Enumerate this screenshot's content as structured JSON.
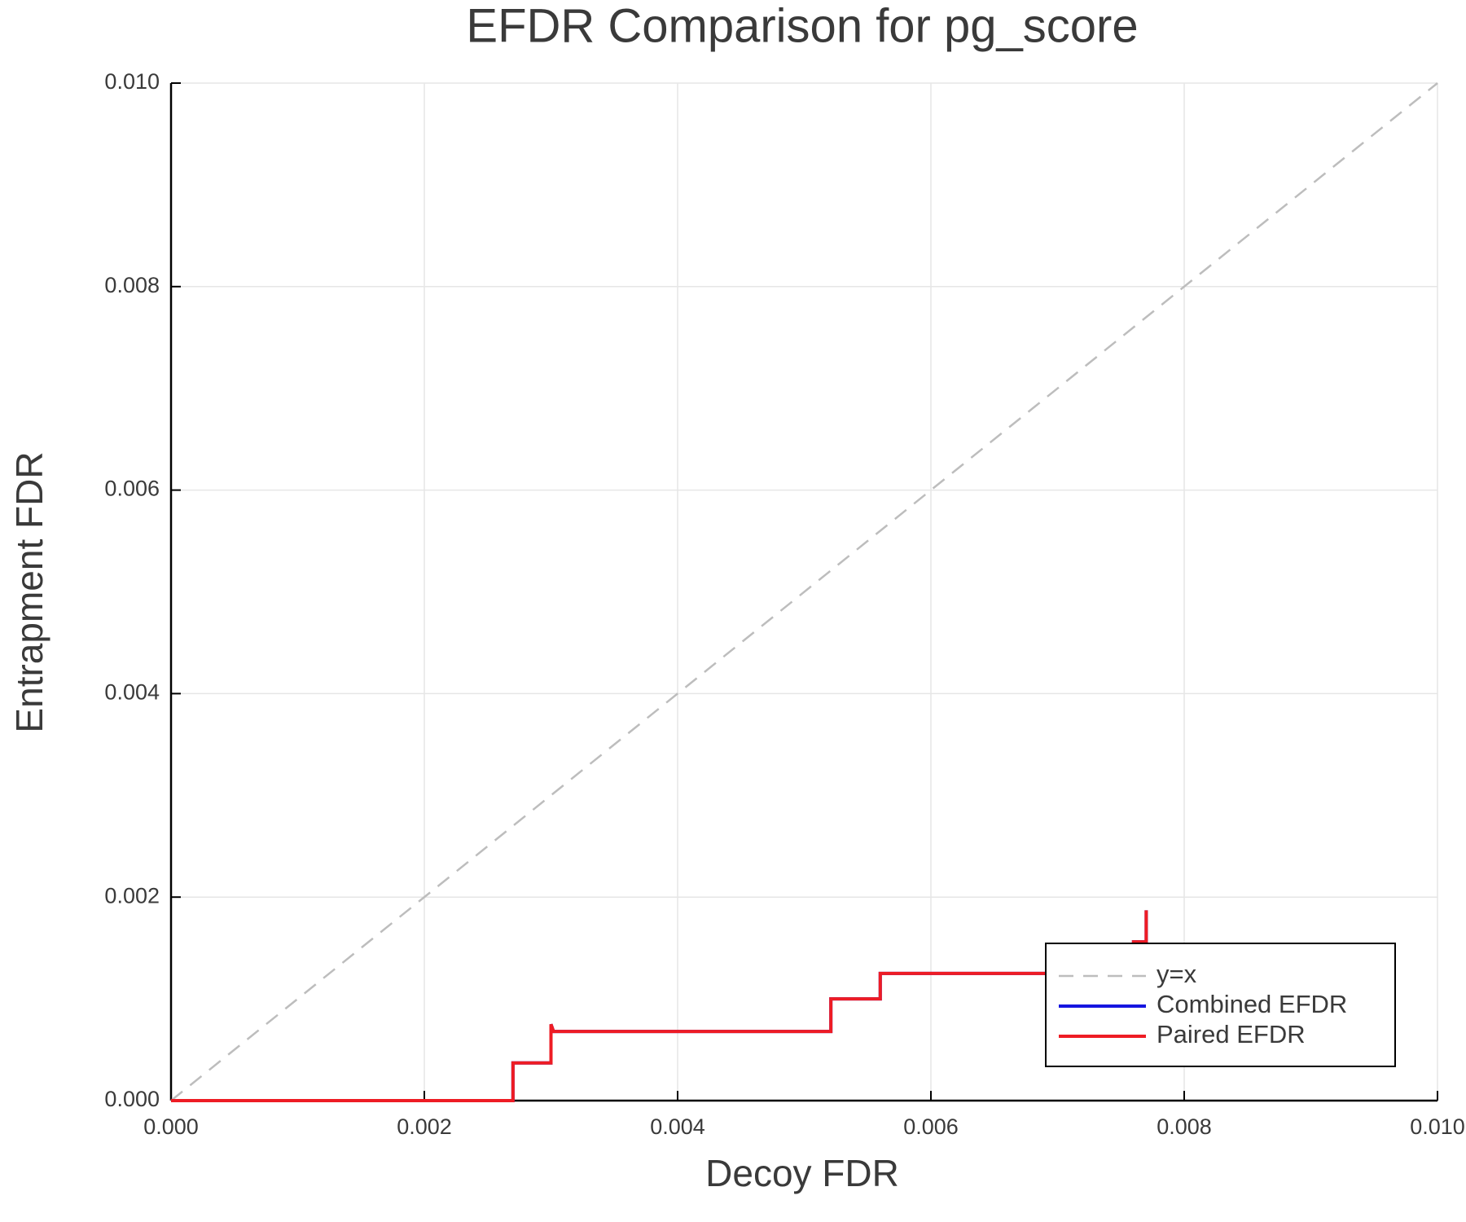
{
  "chart_data": {
    "type": "line",
    "title": "EFDR Comparison for pg_score",
    "xlabel": "Decoy FDR",
    "ylabel": "Entrapment FDR",
    "xlim": [
      0,
      0.01
    ],
    "ylim": [
      0,
      0.01
    ],
    "xticks": [
      {
        "value": 0,
        "label": "0.000"
      },
      0.002,
      0.004,
      0.006,
      0.008,
      {
        "value": 0.01,
        "label": "0.010"
      }
    ],
    "yticks": [
      {
        "value": 0,
        "label": "0.000"
      },
      0.002,
      0.004,
      0.006,
      0.008,
      {
        "value": 0.01,
        "label": "0.010"
      }
    ],
    "grid": true,
    "legend": "bottom-right",
    "series": [
      {
        "name": "y=x",
        "color": "#bdbdbd",
        "dash": true,
        "x": [
          0,
          0.01
        ],
        "values": [
          0,
          0.01
        ]
      },
      {
        "name": "Combined EFDR",
        "color": "#1515e0",
        "dash": false,
        "x": [
          0,
          0.0027,
          0.0027,
          0.003,
          0.003,
          0.00302,
          0.00302,
          0.00521,
          0.00521,
          0.0056,
          0.0056,
          0.0076,
          0.0076,
          0.0077,
          0.0077
        ],
        "values": [
          0,
          0,
          0.00037,
          0.00037,
          0.00075,
          0.00068,
          0.00068,
          0.00068,
          0.001,
          0.001,
          0.00125,
          0.00125,
          0.00156,
          0.00156,
          0.00187
        ]
      },
      {
        "name": "Paired EFDR",
        "color": "#ee1c24",
        "dash": false,
        "x": [
          0,
          0.0027,
          0.0027,
          0.003,
          0.003,
          0.00302,
          0.00302,
          0.00521,
          0.00521,
          0.0056,
          0.0056,
          0.0076,
          0.0076,
          0.0077,
          0.0077
        ],
        "values": [
          0,
          0,
          0.00037,
          0.00037,
          0.00075,
          0.00068,
          0.00068,
          0.00068,
          0.001,
          0.001,
          0.00125,
          0.00125,
          0.00156,
          0.00156,
          0.00187
        ]
      }
    ]
  }
}
